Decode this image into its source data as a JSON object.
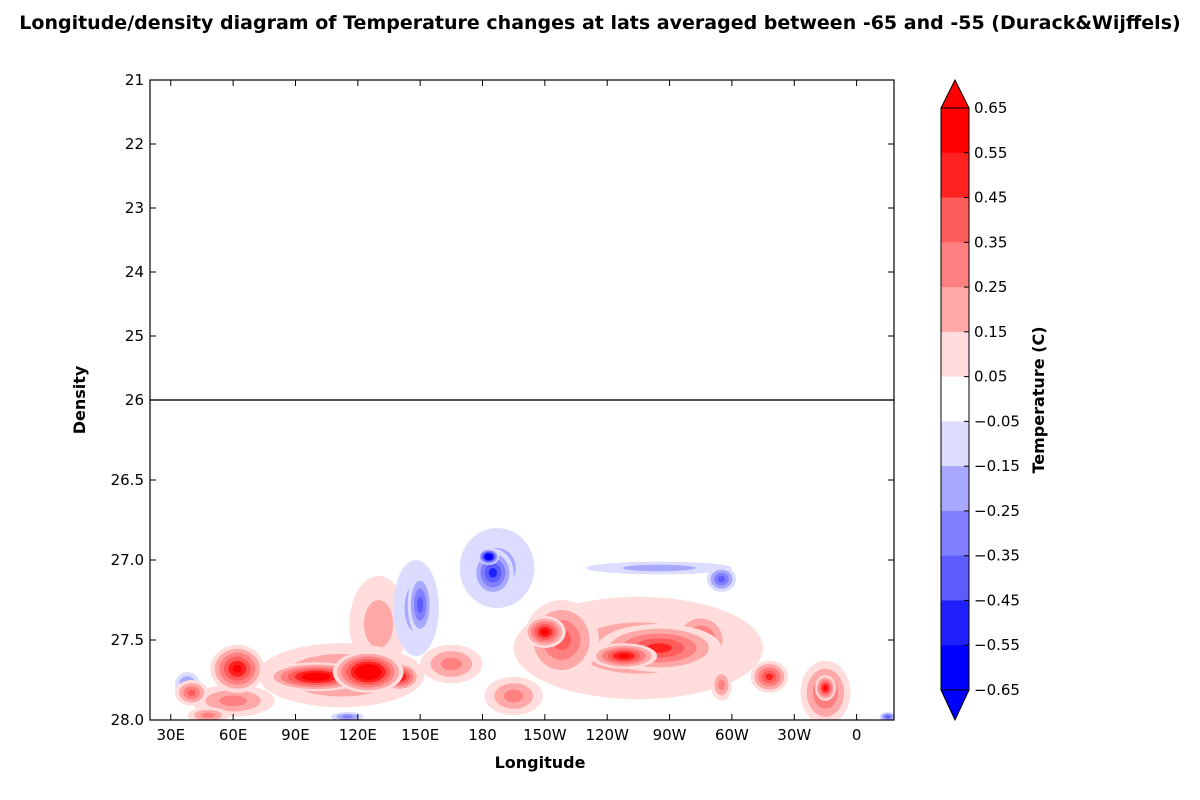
{
  "chart_data": {
    "type": "heatmap",
    "title": "Longitude/density diagram of Temperature changes at lats averaged between -65 and -55 (Durack&Wijffels)",
    "xlabel": "Longitude",
    "ylabel": "Density",
    "colorbar_label": "Temperature (C)",
    "x_ticks": [
      {
        "label": "30E",
        "lon": 30
      },
      {
        "label": "60E",
        "lon": 60
      },
      {
        "label": "90E",
        "lon": 90
      },
      {
        "label": "120E",
        "lon": 120
      },
      {
        "label": "150E",
        "lon": 150
      },
      {
        "label": "180",
        "lon": 180
      },
      {
        "label": "150W",
        "lon": 210
      },
      {
        "label": "120W",
        "lon": 240
      },
      {
        "label": "90W",
        "lon": 270
      },
      {
        "label": "60W",
        "lon": 300
      },
      {
        "label": "30W",
        "lon": 330
      },
      {
        "label": "0",
        "lon": 360
      }
    ],
    "xlim": [
      20,
      378
    ],
    "upper_panel": {
      "ylim": [
        21,
        26
      ],
      "ticks": [
        "21",
        "22",
        "23",
        "24",
        "25",
        "26"
      ]
    },
    "lower_panel": {
      "ylim": [
        26,
        28
      ],
      "ticks": [
        "26.5",
        "27.0",
        "27.5",
        "28.0"
      ]
    },
    "colorbar": {
      "levels": [
        "0.65",
        "0.55",
        "0.45",
        "0.35",
        "0.25",
        "0.15",
        "0.05",
        "−0.05",
        "−0.15",
        "−0.25",
        "−0.35",
        "−0.45",
        "−0.55",
        "−0.65"
      ],
      "colors": [
        "#ff0000",
        "#ff2020",
        "#ff5c5c",
        "#ff8080",
        "#ffa8a8",
        "#ffdddd",
        "#ffffff",
        "#dcdcff",
        "#a8a8ff",
        "#8080ff",
        "#5c5cff",
        "#2020ff",
        "#0000ff"
      ],
      "extend": "both"
    },
    "features": [
      {
        "lon": 40,
        "dens": 27.83,
        "rx": 8,
        "ry": 0.08,
        "v": 0.32
      },
      {
        "lon": 48,
        "dens": 27.97,
        "rx": 10,
        "ry": 0.05,
        "v": 0.28
      },
      {
        "lon": 62,
        "dens": 27.68,
        "rx": 13,
        "ry": 0.15,
        "v": 0.58
      },
      {
        "lon": 60,
        "dens": 27.88,
        "rx": 20,
        "ry": 0.1,
        "v": 0.2
      },
      {
        "lon": 100,
        "dens": 27.73,
        "rx": 24,
        "ry": 0.09,
        "v": 0.7
      },
      {
        "lon": 125,
        "dens": 27.7,
        "rx": 17,
        "ry": 0.13,
        "v": 0.72
      },
      {
        "lon": 140,
        "dens": 27.73,
        "rx": 10,
        "ry": 0.09,
        "v": 0.6
      },
      {
        "lon": 112,
        "dens": 27.72,
        "rx": 40,
        "ry": 0.2,
        "v": 0.28
      },
      {
        "lon": 130,
        "dens": 27.4,
        "rx": 14,
        "ry": 0.3,
        "v": 0.12
      },
      {
        "lon": 165,
        "dens": 27.65,
        "rx": 15,
        "ry": 0.12,
        "v": 0.22
      },
      {
        "lon": 195,
        "dens": 27.85,
        "rx": 14,
        "ry": 0.12,
        "v": 0.25
      },
      {
        "lon": 210,
        "dens": 27.45,
        "rx": 10,
        "ry": 0.1,
        "v": 0.55
      },
      {
        "lon": 218,
        "dens": 27.5,
        "rx": 18,
        "ry": 0.25,
        "v": 0.36
      },
      {
        "lon": 248,
        "dens": 27.6,
        "rx": 16,
        "ry": 0.08,
        "v": 0.6
      },
      {
        "lon": 265,
        "dens": 27.55,
        "rx": 30,
        "ry": 0.15,
        "v": 0.42
      },
      {
        "lon": 285,
        "dens": 27.5,
        "rx": 14,
        "ry": 0.18,
        "v": 0.35
      },
      {
        "lon": 255,
        "dens": 27.55,
        "rx": 60,
        "ry": 0.32,
        "v": 0.18
      },
      {
        "lon": 295,
        "dens": 27.78,
        "rx": 5,
        "ry": 0.1,
        "v": 0.3
      },
      {
        "lon": 318,
        "dens": 27.73,
        "rx": 9,
        "ry": 0.1,
        "v": 0.4
      },
      {
        "lon": 345,
        "dens": 27.8,
        "rx": 5,
        "ry": 0.08,
        "v": 0.6
      },
      {
        "lon": 345,
        "dens": 27.83,
        "rx": 12,
        "ry": 0.2,
        "v": 0.32
      },
      {
        "lon": 185,
        "dens": 27.08,
        "rx": 10,
        "ry": 0.15,
        "v": -0.42
      },
      {
        "lon": 183,
        "dens": 26.98,
        "rx": 5,
        "ry": 0.05,
        "v": -0.72
      },
      {
        "lon": 187,
        "dens": 27.05,
        "rx": 18,
        "ry": 0.25,
        "v": -0.15
      },
      {
        "lon": 150,
        "dens": 27.28,
        "rx": 6,
        "ry": 0.2,
        "v": -0.38
      },
      {
        "lon": 148,
        "dens": 27.3,
        "rx": 11,
        "ry": 0.3,
        "v": -0.14
      },
      {
        "lon": 295,
        "dens": 27.12,
        "rx": 7,
        "ry": 0.08,
        "v": -0.38
      },
      {
        "lon": 265,
        "dens": 27.05,
        "rx": 35,
        "ry": 0.04,
        "v": -0.15
      },
      {
        "lon": 38,
        "dens": 27.78,
        "rx": 6,
        "ry": 0.08,
        "v": -0.22
      },
      {
        "lon": 115,
        "dens": 27.98,
        "rx": 8,
        "ry": 0.03,
        "v": -0.25
      },
      {
        "lon": 375,
        "dens": 27.98,
        "rx": 4,
        "ry": 0.03,
        "v": -0.35
      }
    ]
  }
}
